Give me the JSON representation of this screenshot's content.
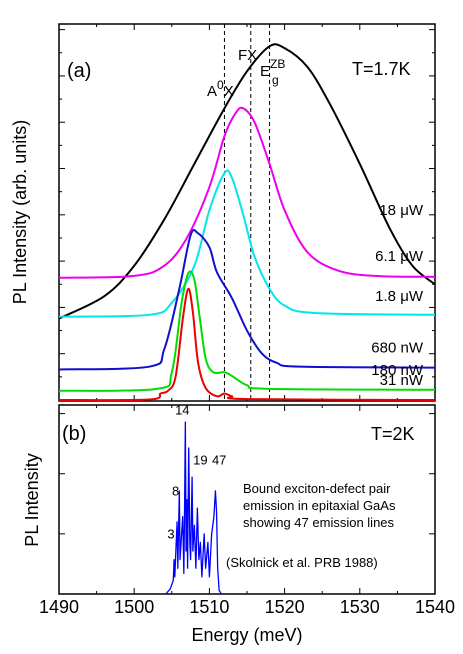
{
  "chart_data": [
    {
      "type": "line",
      "panel": "(a)",
      "temperature": "T=1.7K",
      "ylabel": "PL Intensity (arb. units)",
      "xlim": [
        1490,
        1540
      ],
      "reference_lines": [
        {
          "label": "A",
          "sup": "0",
          "label_suffix": "X",
          "x": 1512
        },
        {
          "label": "FX",
          "x": 1515.5
        },
        {
          "label": "E",
          "sup": "ZB",
          "sub": "g",
          "x": 1518
        }
      ],
      "series": [
        {
          "name": "18 μW",
          "color": "#000000",
          "baseline": 0.88,
          "points": [
            [
              1490,
              0.88
            ],
            [
              1496,
              1.12
            ],
            [
              1500,
              1.45
            ],
            [
              1504,
              1.95
            ],
            [
              1508,
              2.55
            ],
            [
              1512,
              3.15
            ],
            [
              1515,
              3.55
            ],
            [
              1518,
              3.82
            ],
            [
              1520,
              3.8
            ],
            [
              1523,
              3.6
            ],
            [
              1526,
              3.2
            ],
            [
              1530,
              2.55
            ],
            [
              1534,
              1.85
            ],
            [
              1537,
              1.45
            ],
            [
              1540,
              1.25
            ]
          ]
        },
        {
          "name": "6.1 μW",
          "color": "#ee00ee",
          "baseline": 1.32,
          "points": [
            [
              1490,
              1.32
            ],
            [
              1500,
              1.34
            ],
            [
              1504,
              1.45
            ],
            [
              1507,
              1.75
            ],
            [
              1510,
              2.3
            ],
            [
              1512,
              2.85
            ],
            [
              1513.5,
              3.1
            ],
            [
              1514.5,
              3.15
            ],
            [
              1516,
              3.0
            ],
            [
              1518,
              2.55
            ],
            [
              1520,
              2.05
            ],
            [
              1523,
              1.6
            ],
            [
              1527,
              1.4
            ],
            [
              1532,
              1.34
            ],
            [
              1540,
              1.33
            ]
          ]
        },
        {
          "name": "1.8 μW",
          "color": "#00e5ee",
          "baseline": 0.9,
          "points": [
            [
              1490,
              0.9
            ],
            [
              1502,
              0.92
            ],
            [
              1505,
              1.05
            ],
            [
              1508,
              1.45
            ],
            [
              1510,
              2.05
            ],
            [
              1512,
              2.45
            ],
            [
              1513,
              2.4
            ],
            [
              1514.5,
              2.0
            ],
            [
              1516,
              1.55
            ],
            [
              1518,
              1.2
            ],
            [
              1520,
              1.02
            ],
            [
              1524,
              0.94
            ],
            [
              1540,
              0.92
            ]
          ]
        },
        {
          "name": "680 nW",
          "color": "#1010cc",
          "baseline": 0.33,
          "points": [
            [
              1490,
              0.33
            ],
            [
              1502,
              0.36
            ],
            [
              1504,
              0.55
            ],
            [
              1506,
              1.2
            ],
            [
              1507.5,
              1.78
            ],
            [
              1508.5,
              1.8
            ],
            [
              1510,
              1.65
            ],
            [
              1511,
              1.38
            ],
            [
              1513,
              1.1
            ],
            [
              1515,
              0.75
            ],
            [
              1517,
              0.5
            ],
            [
              1519,
              0.4
            ],
            [
              1522,
              0.36
            ],
            [
              1540,
              0.35
            ]
          ]
        },
        {
          "name": "180 nW",
          "color": "#00dd00",
          "baseline": 0.1,
          "points": [
            [
              1490,
              0.1
            ],
            [
              1503,
              0.12
            ],
            [
              1505,
              0.3
            ],
            [
              1506.3,
              1.05
            ],
            [
              1507.2,
              1.37
            ],
            [
              1508,
              1.3
            ],
            [
              1508.7,
              0.9
            ],
            [
              1509.5,
              0.45
            ],
            [
              1510.5,
              0.3
            ],
            [
              1512,
              0.3
            ],
            [
              1513,
              0.26
            ],
            [
              1515,
              0.16
            ],
            [
              1518,
              0.12
            ],
            [
              1540,
              0.11
            ]
          ]
        },
        {
          "name": "31 nW",
          "color": "#ee0000",
          "baseline": 0.0,
          "points": [
            [
              1490,
              0.0
            ],
            [
              1502,
              0.005
            ],
            [
              1503.5,
              0.07
            ],
            [
              1504.5,
              0.1
            ],
            [
              1505.5,
              0.25
            ],
            [
              1506.5,
              0.9
            ],
            [
              1507.2,
              1.2
            ],
            [
              1507.8,
              0.95
            ],
            [
              1508.5,
              0.4
            ],
            [
              1509.5,
              0.13
            ],
            [
              1511,
              0.04
            ],
            [
              1512,
              0.07
            ],
            [
              1513,
              0.04
            ],
            [
              1515,
              0.01
            ],
            [
              1540,
              0.0
            ]
          ]
        }
      ]
    },
    {
      "type": "line",
      "panel": "(b)",
      "temperature": "T=2K",
      "ylabel": "PL Intensity",
      "xlabel": "Energy (meV)",
      "xlim": [
        1490,
        1540
      ],
      "xticks": [
        1490,
        1500,
        1510,
        1520,
        1530,
        1540
      ],
      "series": [
        {
          "name": "",
          "color": "#0000ff",
          "points": [
            [
              1504.2,
              0.0
            ],
            [
              1504.8,
              0.03
            ],
            [
              1505.2,
              0.08
            ],
            [
              1505.3,
              0.2
            ],
            [
              1505.4,
              0.1
            ],
            [
              1505.7,
              0.42
            ],
            [
              1505.8,
              0.15
            ],
            [
              1506.0,
              0.6
            ],
            [
              1506.1,
              0.2
            ],
            [
              1506.3,
              0.35
            ],
            [
              1506.45,
              0.45
            ],
            [
              1506.6,
              0.12
            ],
            [
              1506.7,
              0.5
            ],
            [
              1506.8,
              1.0
            ],
            [
              1506.9,
              0.25
            ],
            [
              1507.0,
              0.55
            ],
            [
              1507.1,
              0.15
            ],
            [
              1507.25,
              0.85
            ],
            [
              1507.4,
              0.3
            ],
            [
              1507.5,
              0.2
            ],
            [
              1507.7,
              0.68
            ],
            [
              1507.8,
              0.25
            ],
            [
              1508.0,
              0.4
            ],
            [
              1508.2,
              0.15
            ],
            [
              1508.4,
              0.5
            ],
            [
              1508.6,
              0.2
            ],
            [
              1508.8,
              0.3
            ],
            [
              1509.0,
              0.1
            ],
            [
              1509.3,
              0.35
            ],
            [
              1509.5,
              0.15
            ],
            [
              1509.8,
              0.3
            ],
            [
              1510.0,
              0.1
            ],
            [
              1510.3,
              0.35
            ],
            [
              1510.6,
              0.45
            ],
            [
              1510.8,
              0.6
            ],
            [
              1510.95,
              0.48
            ],
            [
              1511.1,
              0.15
            ],
            [
              1511.3,
              0.02
            ],
            [
              1511.6,
              0.0
            ]
          ]
        }
      ],
      "peak_labels": [
        {
          "text": "14",
          "x": 1506.4,
          "y": 1.02
        },
        {
          "text": "3",
          "x": 1504.9,
          "y": 0.3
        },
        {
          "text": "8",
          "x": 1505.5,
          "y": 0.55
        },
        {
          "text": "19",
          "x": 1508.8,
          "y": 0.73
        },
        {
          "text": "47",
          "x": 1511.3,
          "y": 0.73
        }
      ],
      "note_lines": [
        "Bound exciton-defect pair",
        "emission in epitaxial GaAs",
        "showing 47 emission lines"
      ],
      "citation": "(Skolnick et al. PRB 1988)"
    }
  ]
}
